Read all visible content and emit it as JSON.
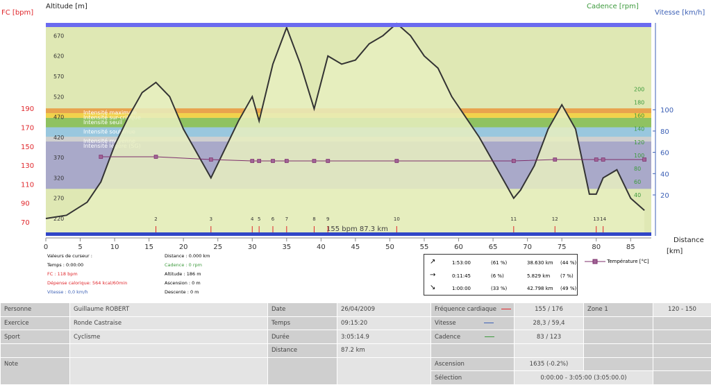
{
  "axis_titles": {
    "fc": "FC [bpm]",
    "altitude": "Altitude  [m]",
    "cadence": "Cadence [rpm]",
    "vitesse": "Vitesse [km/h]",
    "distance": "Distance",
    "distance_unit": "[km]"
  },
  "chart_data": {
    "type": "line",
    "x_range": [
      0,
      88
    ],
    "fc_ticks": [
      70,
      90,
      110,
      130,
      150,
      170,
      190
    ],
    "altitude_ticks": [
      220,
      270,
      320,
      370,
      420,
      470,
      520,
      570,
      620,
      670
    ],
    "cadence_ticks": [
      40,
      60,
      80,
      100,
      120,
      140,
      160,
      180,
      200
    ],
    "vitesse_ticks": [
      20,
      40,
      60,
      80,
      100
    ],
    "x_ticks": [
      0,
      5,
      10,
      15,
      20,
      25,
      30,
      35,
      40,
      45,
      50,
      55,
      60,
      65,
      70,
      75,
      80,
      85
    ],
    "zones": [
      {
        "label": "Intensité maximale",
        "bpm": [
          180,
          190
        ],
        "color": "#e8a34e"
      },
      {
        "label": "Intensité sur-critique",
        "bpm": [
          176,
          185
        ],
        "color": "#f1d24c"
      },
      {
        "label": "Intensité seuil",
        "bpm": [
          170,
          180
        ],
        "color": "#8fc261"
      },
      {
        "label": "Intensité soutenue",
        "bpm": [
          160,
          170
        ],
        "color": "#99c7de"
      },
      {
        "label": "Intensité moyenne",
        "bpm": [
          155,
          160
        ],
        "color": "#cfcfcf"
      },
      {
        "label": "Intensité légère (SG)",
        "bpm": [
          105,
          155
        ],
        "color": "#a9a9c9"
      }
    ],
    "fc_reference": {
      "value": 155,
      "label": "155 bpm 87.3 km"
    },
    "markers": [
      2,
      3,
      4,
      5,
      6,
      7,
      8,
      9,
      10,
      11,
      12,
      13,
      14
    ],
    "series": [
      {
        "name": "Altitude",
        "color": "#333333",
        "x": [
          0,
          3,
          6,
          8,
          10,
          12,
          14,
          16,
          18,
          20,
          22,
          24,
          26,
          28,
          30,
          31,
          33,
          35,
          37,
          39,
          41,
          43,
          45,
          47,
          49,
          51,
          53,
          55,
          57,
          59,
          61,
          63,
          65,
          67,
          68,
          69,
          71,
          73,
          75,
          77,
          79,
          80,
          81,
          83,
          85,
          87
        ],
        "y": [
          220,
          228,
          260,
          310,
          400,
          470,
          530,
          555,
          520,
          440,
          380,
          320,
          390,
          460,
          520,
          460,
          600,
          690,
          600,
          490,
          620,
          600,
          610,
          650,
          670,
          700,
          670,
          620,
          590,
          520,
          470,
          420,
          360,
          300,
          270,
          290,
          350,
          440,
          500,
          440,
          280,
          280,
          320,
          340,
          270,
          240
        ]
      },
      {
        "name": "Température [°C]",
        "color": "#7d2e6b",
        "x": [
          8,
          16,
          24,
          30,
          31,
          33,
          35,
          39,
          41,
          51,
          68,
          74,
          80,
          81,
          87
        ],
        "y": [
          30,
          30,
          29,
          28.5,
          28.5,
          28.5,
          28.5,
          28.5,
          28.5,
          28.5,
          28.5,
          29,
          29,
          29,
          29
        ]
      }
    ]
  },
  "cursor": {
    "label": "Valeurs de curseur :",
    "temps": "Temps : 0:00:00",
    "fc": "FC : 118 bpm",
    "depense": "Dépense calorique: 564 kcal/60min",
    "vitesse": "Vitesse : 0,0 km/h",
    "distance": "Distance : 0.000 km",
    "cadence": "Cadence : 0 rpm",
    "altitude": "Altitude : 186 m",
    "ascension": "Ascension : 0 m",
    "descente": "Descente : 0 m"
  },
  "summary": [
    {
      "time": "1:53:00",
      "pct": "(61 %)",
      "km": "38.630 km",
      "kpct": "(44 %)"
    },
    {
      "time": "0:11:45",
      "pct": "(6 %)",
      "km": "5.829 km",
      "kpct": "(7 %)"
    },
    {
      "time": "1:00:00",
      "pct": "(33 %)",
      "km": "42.798 km",
      "kpct": "(49 %)"
    }
  ],
  "legend": {
    "temperature": "Température [°C]"
  },
  "table": {
    "personne_label": "Personne",
    "personne": "Guillaume ROBERT",
    "exercice_label": "Exercice",
    "exercice": "Ronde Castraise",
    "sport_label": "Sport",
    "sport": "Cyclisme",
    "note_label": "Note",
    "date_label": "Date",
    "date": "26/04/2009",
    "temps_label": "Temps",
    "temps": "09:15:20",
    "duree_label": "Durée",
    "duree": "3:05:14.9",
    "distance_label": "Distance",
    "distance": "87.2 km",
    "fc_label": "Fréquence cardiaque",
    "fc": "155  /  176",
    "vitesse_label": "Vitesse",
    "vitesse": "28,3  /  59,4",
    "cadence_label": "Cadence",
    "cadence": "83  /  123",
    "ascension_label": "Ascension",
    "ascension": "1635  (-0.2%)",
    "selection_label": "Sélection",
    "selection": "0:00:00  -  3:05:00  (3:05:00.0)",
    "zone_label": "Zone 1",
    "zone": "120  -  150"
  },
  "colors": {
    "fc": "#e0262b",
    "cadence": "#3c9a3c",
    "vitesse": "#3b5fb5",
    "altitude": "#333333",
    "temperature": "#7d2e6b",
    "bottom_bar": "#3046c8"
  }
}
